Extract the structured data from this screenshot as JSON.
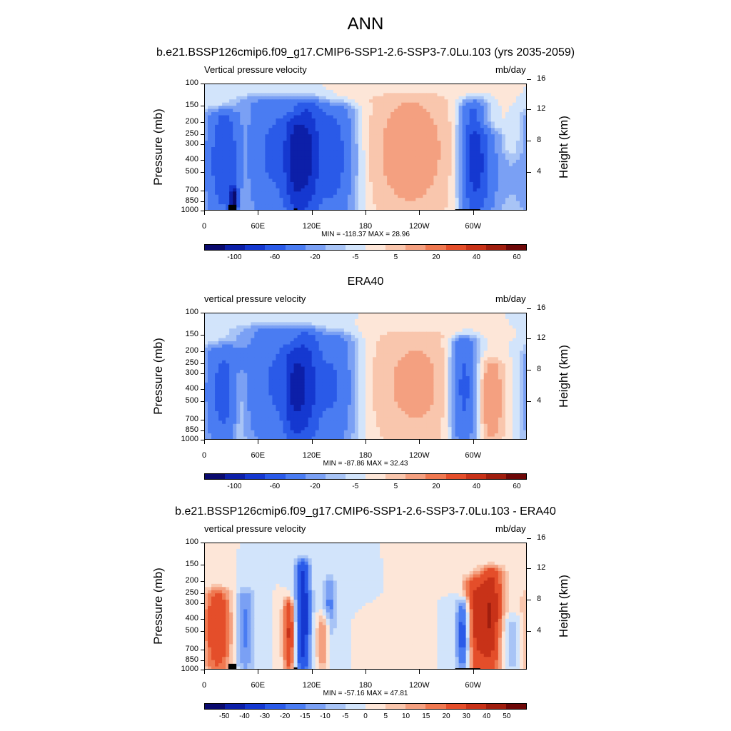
{
  "title": "ANN",
  "panels": [
    {
      "id": "model",
      "title": "b.e21.BSSP126cmip6.f09_g17.CMIP6-SSP1-2.6-SSP3-7.0Lu.103 (yrs 2035-2059)",
      "left_label": "Vertical pressure velocity",
      "right_label": "mb/day",
      "minmax": "MIN = -118.37  MAX =  28.96",
      "scale": "abs"
    },
    {
      "id": "obs",
      "title": "ERA40",
      "left_label": "vertical pressure velocity",
      "right_label": "mb/day",
      "minmax": "MIN = -87.86  MAX =  32.43",
      "scale": "abs"
    },
    {
      "id": "diff",
      "title": "b.e21.BSSP126cmip6.f09_g17.CMIP6-SSP1-2.6-SSP3-7.0Lu.103 - ERA40",
      "left_label": "vertical pressure velocity",
      "right_label": "mb/day",
      "minmax": "MIN = -57.16  MAX =  47.81",
      "scale": "diff"
    }
  ],
  "chart_data": {
    "type": "heatmap",
    "ylabel": "Pressure (mb)",
    "y2label": "Height (km)",
    "x_ticks": [
      "0",
      "60E",
      "120E",
      "180",
      "120W",
      "60W"
    ],
    "x_tick_values": [
      0,
      60,
      120,
      180,
      240,
      300
    ],
    "xlim": [
      0,
      360
    ],
    "y_ticks": [
      "100",
      "150",
      "200",
      "250",
      "300",
      "400",
      "500",
      "700",
      "850",
      "1000"
    ],
    "y_tick_values": [
      100,
      150,
      200,
      250,
      300,
      400,
      500,
      700,
      850,
      1000
    ],
    "ylim": [
      1000,
      100
    ],
    "y_scale": "log",
    "y2_ticks": [
      "4",
      "8",
      "12",
      "16"
    ],
    "colorbar_abs": {
      "labels": [
        "-100",
        "-60",
        "-20",
        "-5",
        "5",
        "20",
        "40",
        "60"
      ],
      "colors": [
        "#0a0a6e",
        "#0c1fa8",
        "#1538d0",
        "#2a5ae8",
        "#4a7cf2",
        "#7aa0f4",
        "#a8c4f6",
        "#d2e4fb",
        "#fde6d8",
        "#f9c6ad",
        "#f4a080",
        "#ef7850",
        "#e44e2a",
        "#c83218",
        "#a01e0e",
        "#6e0808"
      ]
    },
    "colorbar_diff": {
      "labels": [
        "-50",
        "-40",
        "-30",
        "-20",
        "-15",
        "-10",
        "-5",
        "0",
        "5",
        "10",
        "15",
        "20",
        "30",
        "40",
        "50"
      ],
      "colors": [
        "#0a0a6e",
        "#0c1fa8",
        "#1538d0",
        "#2a5ae8",
        "#4a7cf2",
        "#7aa0f4",
        "#a8c4f6",
        "#d2e4fb",
        "#fde6d8",
        "#f9c6ad",
        "#f4a080",
        "#ef7850",
        "#e44e2a",
        "#c83218",
        "#a01e0e",
        "#6e0808"
      ]
    },
    "series": [
      {
        "panel": "model",
        "min": -118.37,
        "max": 28.96,
        "features": [
          {
            "lon": 5,
            "w": 8,
            "p_top": 200,
            "amp": 4
          },
          {
            "lon": 20,
            "w": 14,
            "p_top": 180,
            "amp": -55
          },
          {
            "lon": 33,
            "w": 3,
            "p_top": 700,
            "amp": -100
          },
          {
            "lon": 45,
            "w": 6,
            "p_top": 180,
            "amp": 12
          },
          {
            "lon": 80,
            "w": 28,
            "p_top": 140,
            "amp": -45
          },
          {
            "lon": 100,
            "w": 8,
            "p_top": 200,
            "amp": -40
          },
          {
            "lon": 115,
            "w": 10,
            "p_top": 150,
            "amp": -55
          },
          {
            "lon": 145,
            "w": 16,
            "p_top": 160,
            "amp": -50
          },
          {
            "lon": 230,
            "w": 40,
            "p_top": 130,
            "amp": 14
          },
          {
            "lon": 300,
            "w": 10,
            "p_top": 150,
            "amp": -60
          },
          {
            "lon": 315,
            "w": 12,
            "p_top": 250,
            "amp": -30
          },
          {
            "lon": 345,
            "w": 12,
            "p_top": 400,
            "amp": -8
          }
        ],
        "topography": [
          [
            8,
            40,
            990
          ],
          [
            27,
            36,
            900
          ],
          [
            100,
            104,
            960
          ],
          [
            280,
            308,
            975
          ]
        ]
      },
      {
        "panel": "obs",
        "min": -87.86,
        "max": 32.43,
        "features": [
          {
            "lon": 20,
            "w": 14,
            "p_top": 200,
            "amp": -45
          },
          {
            "lon": 40,
            "w": 6,
            "p_top": 300,
            "amp": 20
          },
          {
            "lon": 80,
            "w": 28,
            "p_top": 140,
            "amp": -42
          },
          {
            "lon": 100,
            "w": 8,
            "p_top": 200,
            "amp": -40
          },
          {
            "lon": 115,
            "w": 10,
            "p_top": 150,
            "amp": -45
          },
          {
            "lon": 145,
            "w": 16,
            "p_top": 160,
            "amp": -40
          },
          {
            "lon": 235,
            "w": 40,
            "p_top": 150,
            "amp": 12
          },
          {
            "lon": 290,
            "w": 10,
            "p_top": 170,
            "amp": -50
          },
          {
            "lon": 320,
            "w": 12,
            "p_top": 250,
            "amp": 15
          }
        ],
        "topography": []
      },
      {
        "panel": "diff",
        "min": -57.16,
        "max": 47.81,
        "features": [
          {
            "lon": 15,
            "w": 12,
            "p_top": 250,
            "amp": 30
          },
          {
            "lon": 45,
            "w": 8,
            "p_top": 250,
            "amp": -18
          },
          {
            "lon": 95,
            "w": 5,
            "p_top": 300,
            "amp": 32
          },
          {
            "lon": 110,
            "w": 6,
            "p_top": 150,
            "amp": -40
          },
          {
            "lon": 135,
            "w": 6,
            "p_top": 400,
            "amp": 22
          },
          {
            "lon": 140,
            "w": 5,
            "p_top": 200,
            "amp": -18
          },
          {
            "lon": 290,
            "w": 6,
            "p_top": 300,
            "amp": -35
          },
          {
            "lon": 300,
            "w": 8,
            "p_top": 200,
            "amp": 30
          },
          {
            "lon": 320,
            "w": 10,
            "p_top": 170,
            "amp": 40
          },
          {
            "lon": 340,
            "w": 10,
            "p_top": 400,
            "amp": -12
          }
        ],
        "topography": [
          [
            8,
            40,
            990
          ],
          [
            27,
            36,
            900
          ],
          [
            100,
            104,
            960
          ],
          [
            280,
            308,
            975
          ]
        ]
      }
    ]
  }
}
